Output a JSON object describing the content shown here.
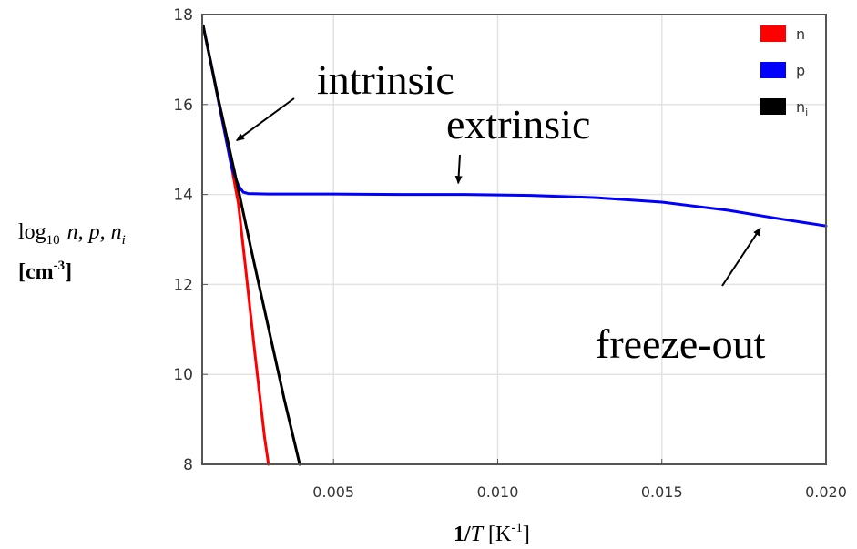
{
  "chart_data": {
    "type": "line",
    "xlabel": "1/T [K⁻¹]",
    "ylabel": "log₁₀ n, p, nᵢ [cm⁻³]",
    "xlim": [
      0.001,
      0.02
    ],
    "ylim": [
      8,
      18
    ],
    "xticks": [
      "0.005",
      "0.010",
      "0.015",
      "0.020"
    ],
    "xtick_values": [
      0.005,
      0.01,
      0.015,
      0.02
    ],
    "yticks": [
      "8",
      "10",
      "12",
      "14",
      "16",
      "18"
    ],
    "ytick_values": [
      8,
      10,
      12,
      14,
      16,
      18
    ],
    "grid": true,
    "legend_position": "top-right",
    "series": [
      {
        "name": "n",
        "color": "#ff0000",
        "x": [
          0.00103,
          0.0013,
          0.0016,
          0.0019,
          0.0021,
          0.0023,
          0.0026,
          0.0029,
          0.00302
        ],
        "y": [
          17.75,
          16.8,
          15.7,
          14.6,
          13.8,
          12.5,
          10.5,
          8.6,
          8.0
        ]
      },
      {
        "name": "p",
        "color": "#0000ff",
        "x": [
          0.00103,
          0.0013,
          0.0016,
          0.0019,
          0.0021,
          0.00225,
          0.0024,
          0.003,
          0.005,
          0.007,
          0.009,
          0.011,
          0.013,
          0.015,
          0.017,
          0.0185,
          0.02
        ],
        "y": [
          17.75,
          16.8,
          15.7,
          14.6,
          14.2,
          14.05,
          14.02,
          14.01,
          14.01,
          14.0,
          14.0,
          13.98,
          13.93,
          13.83,
          13.65,
          13.47,
          13.3
        ]
      },
      {
        "name": "nᵢ",
        "color": "#000000",
        "x": [
          0.00103,
          0.0015,
          0.002,
          0.0025,
          0.003,
          0.0035,
          0.00397
        ],
        "y": [
          17.75,
          16.1,
          14.45,
          12.75,
          11.1,
          9.45,
          8.0
        ]
      }
    ],
    "legend": [
      {
        "base": "n",
        "sub": ""
      },
      {
        "base": "p",
        "sub": ""
      },
      {
        "base": "n",
        "sub": "i"
      }
    ],
    "annotations": [
      {
        "text": "intrinsic",
        "x": 0.0048,
        "y": 16.5,
        "arrow_to": [
          0.00205,
          15.2
        ]
      },
      {
        "text": "extrinsic",
        "x": 0.0094,
        "y": 15.5,
        "arrow_to": [
          0.0088,
          14.25
        ]
      },
      {
        "text": "freeze-out",
        "x": 0.0125,
        "y": 10.6,
        "arrow_to": [
          0.018,
          13.25
        ]
      }
    ]
  },
  "axis_title_y": {
    "log": "log",
    "log_sub": "10",
    "vars": "n, p, n",
    "vars_sub": "i",
    "unit_open": "[cm",
    "unit_exp": "-3",
    "unit_close": "]"
  },
  "axis_title_x": {
    "one": "1/",
    "T": "T",
    "unit_open": "[K",
    "unit_exp": "-1",
    "unit_close": "]"
  }
}
